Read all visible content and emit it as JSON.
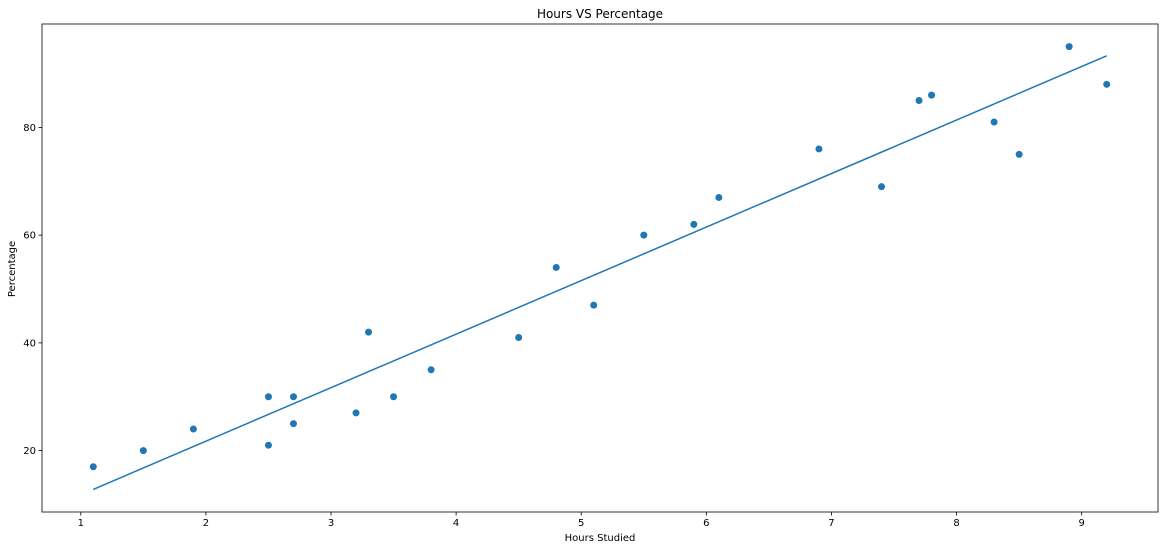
{
  "chart_data": {
    "type": "scatter",
    "title": "Hours VS Percentage",
    "xlabel": "Hours Studied",
    "ylabel": "Percentage",
    "xlim": [
      0.69,
      9.61
    ],
    "ylim": [
      8.6,
      99.2
    ],
    "xticks": [
      1,
      2,
      3,
      4,
      5,
      6,
      7,
      8,
      9
    ],
    "yticks": [
      20,
      40,
      60,
      80
    ],
    "grid": false,
    "colors": {
      "points": "#1f77b4",
      "line": "#1f77b4"
    },
    "series": [
      {
        "type": "scatter",
        "x": [
          2.5,
          5.1,
          3.2,
          8.5,
          3.5,
          1.5,
          9.2,
          5.5,
          8.3,
          2.7,
          7.7,
          5.9,
          4.5,
          3.3,
          1.1,
          8.9,
          2.5,
          1.9,
          6.1,
          7.4,
          2.7,
          4.8,
          3.8,
          6.9,
          7.8
        ],
        "y": [
          21,
          47,
          27,
          75,
          30,
          20,
          88,
          60,
          81,
          25,
          85,
          62,
          41,
          42,
          17,
          95,
          30,
          24,
          67,
          69,
          30,
          54,
          35,
          76,
          86
        ]
      },
      {
        "type": "line",
        "x": [
          1.1,
          9.2
        ],
        "y": [
          12.8,
          93.3
        ]
      }
    ]
  }
}
